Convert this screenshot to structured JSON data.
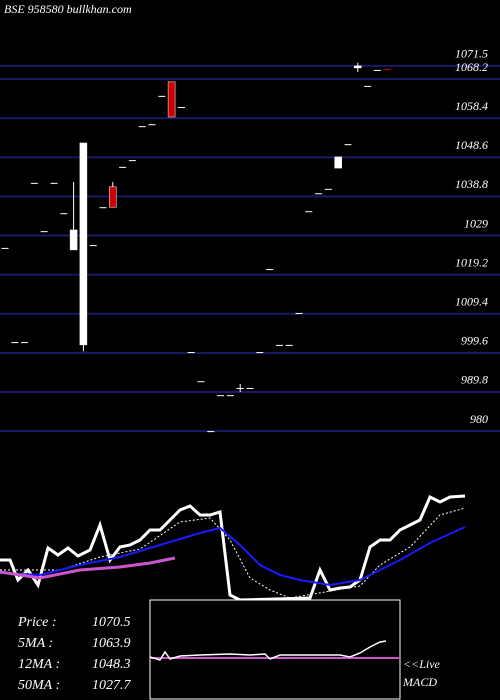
{
  "chart_data": [
    {
      "type": "candlestick",
      "title": "BSE 958580  bullkhan.com",
      "open": [
        1025.9,
        1002.3,
        1002.3,
        1042.2,
        1030.1,
        1042.2,
        1034.6,
        1025.4,
        1001.6,
        1026.6,
        1036.1,
        1041.2,
        1046.2,
        1047.9,
        1056.4,
        1056.9,
        1064.0,
        1067.5,
        1061.2,
        999.8,
        992.5,
        980.0,
        989.0,
        989.0,
        990.8,
        990.8,
        999.8,
        1020.6,
        1001.6,
        1001.6,
        1009.6,
        1035.1,
        1039.6,
        1040.7,
        1045.9,
        1051.9,
        1071.0,
        1066.5,
        1070.5,
        1070.7
      ],
      "high": [
        1025.9,
        1002.3,
        1002.3,
        1042.2,
        1030.1,
        1042.2,
        1034.6,
        1042.4,
        1052.2,
        1026.6,
        1036.1,
        1042.4,
        1046.2,
        1047.9,
        1056.4,
        1056.9,
        1064.0,
        1067.5,
        1061.2,
        999.8,
        992.5,
        980.0,
        989.0,
        989.0,
        991.8,
        990.8,
        999.8,
        1020.6,
        1001.6,
        1001.6,
        1009.6,
        1035.1,
        1039.6,
        1040.7,
        1048.7,
        1051.9,
        1072.3,
        1066.5,
        1070.5,
        1070.7
      ],
      "low": [
        1025.9,
        1002.3,
        1002.3,
        1042.2,
        1030.1,
        1042.2,
        1034.6,
        1025.4,
        1000.0,
        1026.6,
        1036.1,
        1036.1,
        1046.2,
        1047.9,
        1056.4,
        1056.9,
        1064.0,
        1058.7,
        1061.2,
        999.8,
        992.5,
        980.0,
        989.0,
        989.0,
        989.8,
        990.8,
        999.8,
        1020.6,
        1001.6,
        1001.6,
        1009.6,
        1035.1,
        1039.6,
        1040.7,
        1045.9,
        1051.9,
        1070.0,
        1066.5,
        1070.5,
        1070.5
      ],
      "close": [
        1025.9,
        1002.3,
        1002.3,
        1042.2,
        1030.1,
        1042.2,
        1034.6,
        1030.4,
        1052.2,
        1026.6,
        1036.1,
        1036.1,
        1046.2,
        1047.9,
        1056.4,
        1056.9,
        1064.0,
        1058.7,
        1061.2,
        999.8,
        992.5,
        980.0,
        989.0,
        989.0,
        990.8,
        990.8,
        999.8,
        1020.6,
        1001.6,
        1001.6,
        1009.6,
        1035.1,
        1039.6,
        1040.7,
        1048.7,
        1051.9,
        1071.5,
        1066.5,
        1070.5,
        1070.5
      ],
      "up_color": "#ffffff",
      "down_color": "#cc0000",
      "ylim": [
        970,
        1080
      ],
      "yticks": [
        1071.5,
        1068.2,
        1058.4,
        1048.6,
        1038.8,
        1029,
        1019.2,
        1009.4,
        999.6,
        989.8,
        980
      ],
      "grid": true,
      "grid_color": "#1a1a66",
      "stats": [
        {
          "label": "Price   :",
          "value": 1070.5
        },
        {
          "label": "5MA :",
          "value": 1063.9
        },
        {
          "label": "12MA :",
          "value": 1048.3
        },
        {
          "label": "50MA :",
          "value": 1027.7
        }
      ]
    },
    {
      "type": "line",
      "xlim": [
        0,
        500
      ],
      "ylim": [
        0,
        110
      ],
      "series": [
        {
          "color": "#ffffff",
          "width": 3,
          "x": [
            0,
            10,
            18,
            28,
            38,
            48,
            58,
            68,
            78,
            90,
            100,
            110,
            120,
            130,
            140,
            150,
            160,
            170,
            180,
            190,
            200,
            210,
            220,
            230,
            240,
            310,
            320,
            330,
            340,
            350,
            360,
            370,
            380,
            390,
            400,
            410,
            420,
            430,
            440,
            450,
            465
          ],
          "values": [
            40,
            40,
            20,
            30,
            15,
            52,
            45,
            52,
            44,
            50,
            75,
            40,
            53,
            55,
            60,
            70,
            70,
            80,
            90,
            94,
            85,
            85,
            88,
            5,
            0,
            2,
            30,
            10,
            12,
            13,
            20,
            53,
            60,
            60,
            70,
            75,
            80,
            103,
            98,
            103,
            104
          ]
        },
        {
          "color": "#ffffff",
          "width": 1,
          "dash": true,
          "x": [
            0,
            60,
            100,
            140,
            180,
            210,
            230,
            250,
            270,
            290,
            360,
            380,
            410,
            440,
            465
          ],
          "values": [
            30,
            30,
            43,
            51,
            78,
            82,
            60,
            22,
            10,
            2,
            14,
            35,
            53,
            85,
            92
          ]
        },
        {
          "color": "#1a1aff",
          "width": 2,
          "x": [
            0,
            40,
            80,
            120,
            160,
            200,
            220,
            240,
            260,
            280,
            300,
            330,
            360,
            380,
            400,
            430,
            465
          ],
          "values": [
            27,
            25,
            35,
            43,
            55,
            67,
            72,
            55,
            35,
            25,
            20,
            15,
            20,
            30,
            40,
            57,
            73
          ]
        },
        {
          "color": "#cc55cc",
          "width": 3,
          "x": [
            0,
            40,
            80,
            120,
            150,
            175
          ],
          "values": [
            28,
            22,
            30,
            33,
            37,
            42
          ]
        }
      ]
    },
    {
      "type": "line",
      "boxed": true,
      "title": "<<Live",
      "subtitle": "MACD",
      "xlim": [
        0,
        250
      ],
      "ylim": [
        -50,
        50
      ],
      "series": [
        {
          "color": "#cc55cc",
          "width": 2,
          "x": [
            0,
            250
          ],
          "values": [
            -8,
            -8
          ]
        },
        {
          "color": "#ffffff",
          "width": 1.5,
          "x": [
            0,
            10,
            15,
            20,
            30,
            50,
            80,
            100,
            115,
            120,
            130,
            150,
            170,
            190,
            200,
            210,
            220,
            230,
            236
          ],
          "values": [
            -7,
            -10,
            -2,
            -9,
            -6,
            -5,
            -4,
            -5,
            -4,
            -9,
            -5,
            -5,
            -5,
            -5,
            -7,
            -3,
            3,
            8,
            9
          ]
        }
      ]
    }
  ]
}
